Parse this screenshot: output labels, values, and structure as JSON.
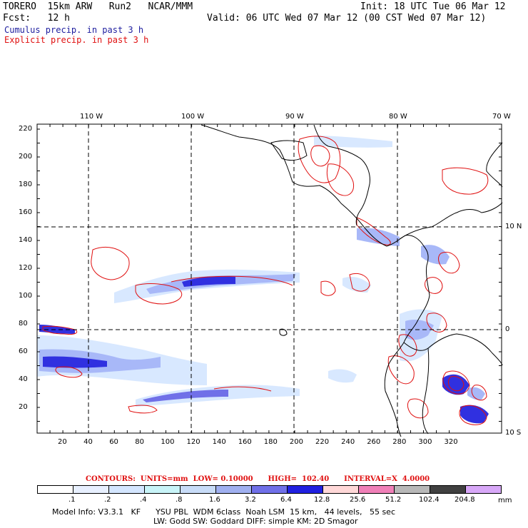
{
  "header": {
    "model_label": "TORERO  15km ARW   Run2   NCAR/MMM",
    "init_label": "Init: 18 UTC Tue 06 Mar 12",
    "fcst_label": "Fcst:   12 h",
    "valid_label": "Valid: 06 UTC Wed 07 Mar 12 (00 CST Wed 07 Mar 12)",
    "field1": "Cumulus precip. in past 3 h",
    "field2": "Explicit precip. in past 3 h"
  },
  "map": {
    "top_lon_labels": [
      "110 W",
      "100 W",
      "90 W",
      "80 W",
      "70 W"
    ],
    "right_lat_labels": [
      "10 N",
      "0",
      "10 S"
    ],
    "y_grid_labels": [
      "220",
      "200",
      "180",
      "160",
      "140",
      "120",
      "100",
      "80",
      "60",
      "40",
      "20"
    ],
    "x_grid_labels": [
      "20",
      "40",
      "60",
      "80",
      "100",
      "120",
      "140",
      "160",
      "180",
      "200",
      "220",
      "240",
      "260",
      "280",
      "300",
      "320"
    ],
    "colors": {
      "coast": "#000000",
      "cumulus_light": "#d8e8ff",
      "cumulus_mid": "#a8b8f8",
      "cumulus_dark": "#3030e0",
      "explicit": "#e01010"
    }
  },
  "contours": {
    "text": "CONTOURS:  UNITS=mm  LOW= 0.10000      HIGH=  102.40      INTERVAL=X  4.0000"
  },
  "legend": {
    "labels": [
      ".1",
      ".2",
      ".4",
      ".8",
      "1.6",
      "3.2",
      "6.4",
      "12.8",
      "25.6",
      "51.2",
      "102.4",
      "204.8"
    ],
    "unit": "mm",
    "colors": [
      "#ffffff",
      "#e8f0ff",
      "#d4e6ff",
      "#c8f4f8",
      "#c8dcf8",
      "#a0b0f0",
      "#7070e8",
      "#2020e0",
      "#ffd8d8",
      "#f080b8",
      "#b8b8b8",
      "#404040",
      "#d8a8f8"
    ]
  },
  "model_info": {
    "line1": "Model Info: V3.3.1   KF      YSU PBL  WDM 6class  Noah LSM  15 km,   44 levels,   55 sec",
    "line2": "LW: Godd SW: Goddard DIFF: simple KM: 2D Smagor"
  }
}
